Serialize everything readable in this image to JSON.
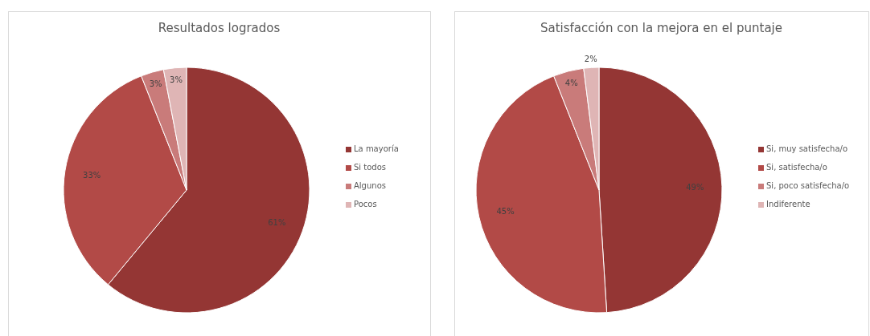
{
  "chart_data": [
    {
      "type": "pie",
      "title": "Resultados logrados",
      "categories": [
        "La mayoría",
        "Si todos",
        "Algunos",
        "Pocos"
      ],
      "values": [
        61,
        33,
        3,
        3
      ],
      "colors": [
        "#943634",
        "#b24a47",
        "#c97b7a",
        "#dfb5b5"
      ],
      "value_labels": [
        "61%",
        "33%",
        "3%",
        "3%"
      ],
      "legend": "right"
    },
    {
      "type": "pie",
      "title": "Satisfacción con la mejora en el puntaje",
      "categories": [
        "Si, muy satisfecha/o",
        "Si, satisfecha/o",
        "Si, poco satisfecha/o",
        "Indiferente"
      ],
      "values": [
        49,
        45,
        4,
        2
      ],
      "colors": [
        "#943634",
        "#b24a47",
        "#c97b7a",
        "#dfb5b5"
      ],
      "value_labels": [
        "49%",
        "45%",
        "4%",
        "2%"
      ],
      "legend": "right"
    }
  ]
}
